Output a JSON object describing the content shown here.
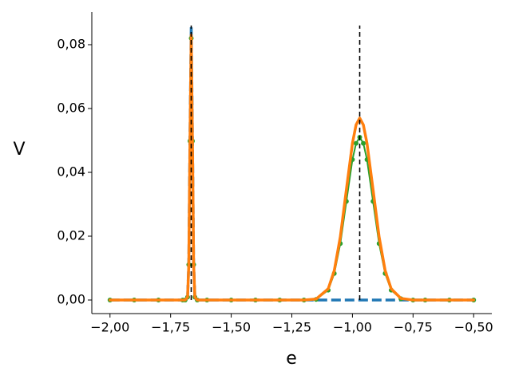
{
  "chart_data": {
    "type": "line",
    "xlabel": "e",
    "ylabel": "V",
    "xlim": [
      -2.075,
      -0.425
    ],
    "ylim": [
      -0.00425,
      0.09025
    ],
    "xticks": [
      {
        "value": -2.0,
        "label": "−2,00"
      },
      {
        "value": -1.75,
        "label": "−1,75"
      },
      {
        "value": -1.5,
        "label": "−1,50"
      },
      {
        "value": -1.25,
        "label": "−1,25"
      },
      {
        "value": -1.0,
        "label": "−1,00"
      },
      {
        "value": -0.75,
        "label": "−0,75"
      },
      {
        "value": -0.5,
        "label": "−0,50"
      }
    ],
    "yticks": [
      {
        "value": 0,
        "label": "0,00"
      },
      {
        "value": 0.02,
        "label": "0,02"
      },
      {
        "value": 0.04,
        "label": "0,04"
      },
      {
        "value": 0.06,
        "label": "0,06"
      },
      {
        "value": 0.08,
        "label": "0,08"
      }
    ],
    "grid": false,
    "x": [
      -2.0,
      -1.9,
      -1.8,
      -1.7,
      -1.69,
      -1.68,
      -1.675,
      -1.67,
      -1.665,
      -1.66,
      -1.655,
      -1.65,
      -1.64,
      -1.6,
      -1.5,
      -1.4,
      -1.3,
      -1.2,
      -1.15,
      -1.1,
      -1.075,
      -1.05,
      -1.025,
      -1.0,
      -0.985,
      -0.97,
      -0.955,
      -0.94,
      -0.915,
      -0.89,
      -0.865,
      -0.84,
      -0.8,
      -0.75,
      -0.7,
      -0.6,
      -0.5
    ],
    "series": [
      {
        "color": "#1f77b4",
        "dash": true,
        "markers": false,
        "width": 3.5,
        "values": [
          0,
          0,
          0,
          0,
          0,
          0.001,
          0.0116,
          0.0522,
          0.086,
          0.0522,
          0.0116,
          0.001,
          0,
          0,
          0,
          0,
          0,
          0,
          0,
          0,
          0,
          0,
          0,
          0,
          0,
          0,
          0,
          0,
          0,
          0,
          0,
          0,
          0,
          0,
          0,
          0,
          0
        ]
      },
      {
        "color": "#2ca02c",
        "dash": false,
        "markers": true,
        "width": 2,
        "values": [
          0,
          0,
          0,
          0,
          0,
          0.0009,
          0.0111,
          0.0498,
          0.082,
          0.0498,
          0.0111,
          0.0009,
          0,
          0,
          0,
          0,
          0,
          0,
          0.0002,
          0.0031,
          0.0083,
          0.0177,
          0.0309,
          0.044,
          0.0491,
          0.051,
          0.0491,
          0.044,
          0.0309,
          0.0177,
          0.0083,
          0.0031,
          0.0004,
          0,
          0,
          0,
          0
        ]
      },
      {
        "color": "#ff7f0e",
        "dash": false,
        "markers": false,
        "width": 3.5,
        "values": [
          0,
          0,
          0,
          0,
          0,
          0.0009,
          0.0112,
          0.0504,
          0.083,
          0.0504,
          0.0112,
          0.0009,
          0,
          0,
          0,
          0,
          0,
          0,
          0.0003,
          0.0035,
          0.0092,
          0.0198,
          0.0346,
          0.0491,
          0.0549,
          0.057,
          0.0549,
          0.0491,
          0.0346,
          0.0198,
          0.0092,
          0.0035,
          0.0005,
          0,
          0,
          0,
          0
        ]
      }
    ],
    "vlines": [
      {
        "x": -1.665,
        "y": [
          0,
          0.086
        ]
      },
      {
        "x": -0.97,
        "y": [
          0,
          0.086
        ]
      }
    ]
  }
}
